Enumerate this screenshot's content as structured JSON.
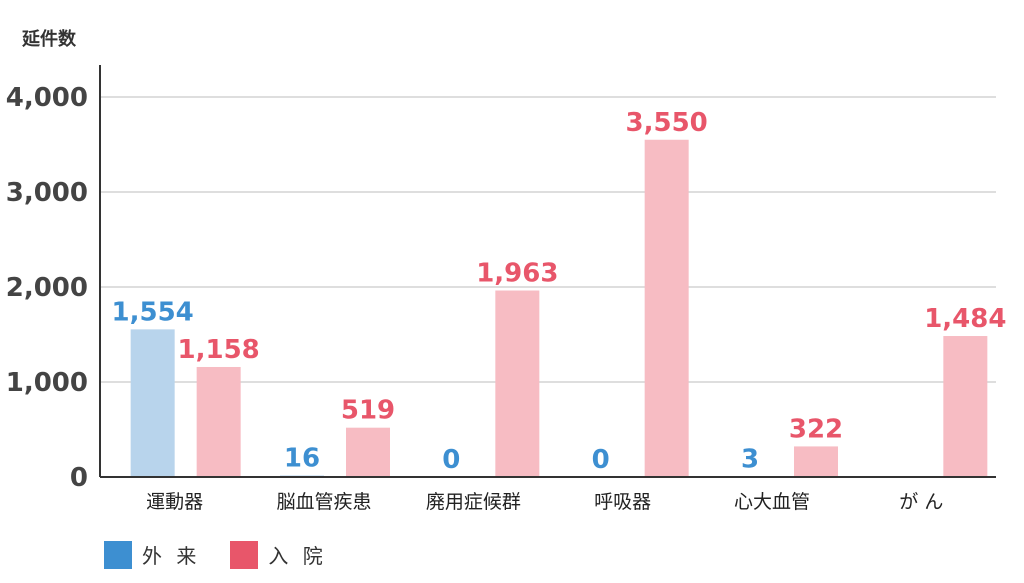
{
  "chart_data": {
    "type": "bar",
    "ylabel": "延件数",
    "ylim": [
      0,
      4000
    ],
    "yticks": [
      "0",
      "1,000",
      "2,000",
      "3,000",
      "4,000"
    ],
    "grid": true,
    "legend_position": "bottom-left",
    "categories": [
      "運動器",
      "脳血管疾患",
      "廃用症候群",
      "呼吸器",
      "心大血管",
      "が ん"
    ],
    "series": [
      {
        "name": "外 来",
        "color": "#3d8fd1",
        "bar_color": "#b8d4ec",
        "values": [
          1554,
          16,
          0,
          0,
          3,
          null
        ],
        "labels": [
          "1,554",
          "16",
          "0",
          "0",
          "3",
          ""
        ]
      },
      {
        "name": "入 院",
        "color": "#e8566a",
        "bar_color": "#f7bcc3",
        "values": [
          1158,
          519,
          1963,
          3550,
          322,
          1484
        ],
        "labels": [
          "1,158",
          "519",
          "1,963",
          "3,550",
          "322",
          "1,484"
        ]
      }
    ]
  }
}
